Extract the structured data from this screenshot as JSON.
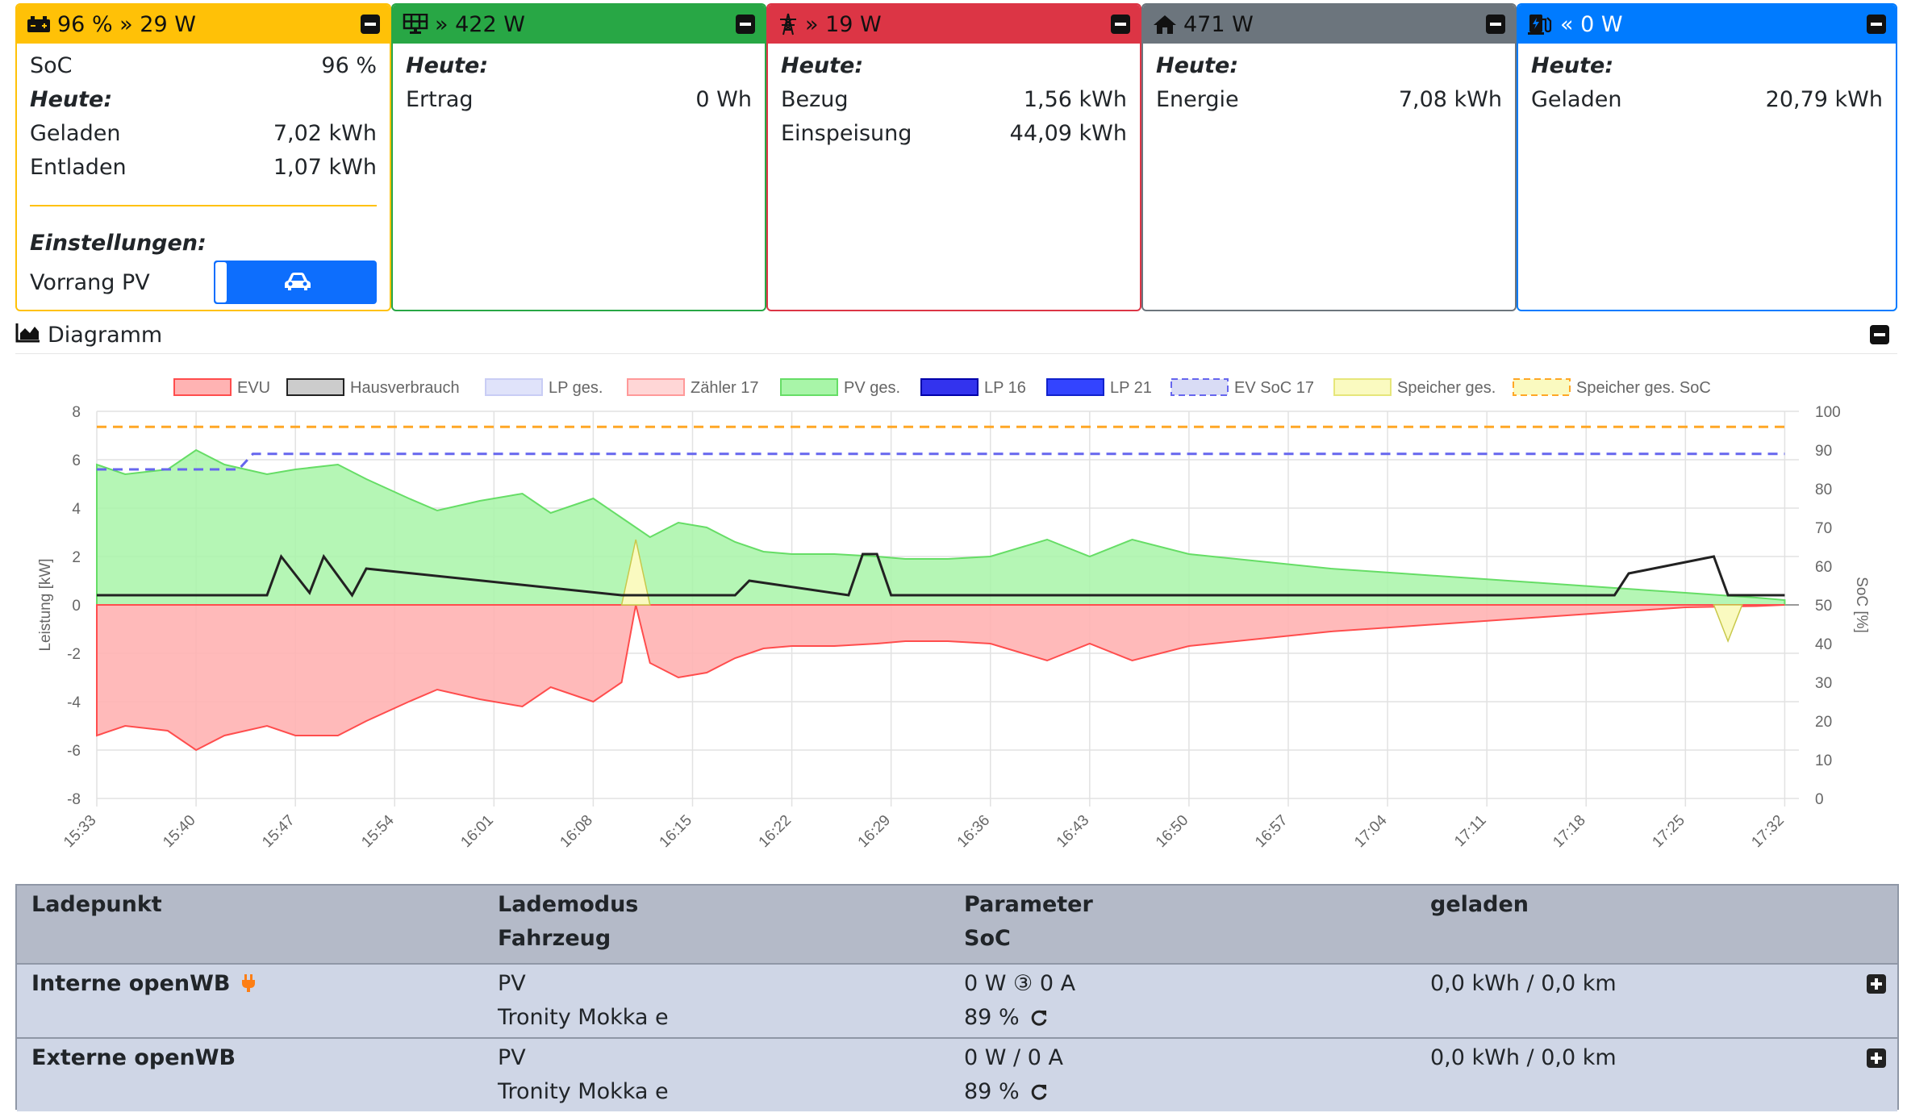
{
  "cards": {
    "battery": {
      "header": "96 % » 29 W",
      "color": "#ffc107",
      "soc_label": "SoC",
      "soc_value": "96 %",
      "today_label": "Heute:",
      "charged_label": "Geladen",
      "charged_value": "7,02 kWh",
      "discharged_label": "Entladen",
      "discharged_value": "1,07 kWh",
      "settings_label": "Einstellungen:",
      "priority_label": "Vorrang PV",
      "priority_toggle_icon": "car-icon"
    },
    "pv": {
      "header": "» 422 W",
      "color": "#28a745",
      "today_label": "Heute:",
      "yield_label": "Ertrag",
      "yield_value": "0 Wh"
    },
    "grid": {
      "header": "» 19 W",
      "color": "#dc3545",
      "today_label": "Heute:",
      "import_label": "Bezug",
      "import_value": "1,56 kWh",
      "export_label": "Einspeisung",
      "export_value": "44,09 kWh"
    },
    "house": {
      "header": "471 W",
      "color": "#6c757d",
      "today_label": "Heute:",
      "energy_label": "Energie",
      "energy_value": "7,08 kWh"
    },
    "charger": {
      "header": "« 0 W",
      "color": "#007bff",
      "today_label": "Heute:",
      "charged_label": "Geladen",
      "charged_value": "20,79 kWh"
    }
  },
  "diagram": {
    "title": "Diagramm"
  },
  "chart_data": {
    "type": "area",
    "x_ticks": [
      "15:33",
      "15:40",
      "15:47",
      "15:54",
      "16:01",
      "16:08",
      "16:15",
      "16:22",
      "16:29",
      "16:36",
      "16:43",
      "16:50",
      "16:57",
      "17:04",
      "17:11",
      "17:18",
      "17:25",
      "17:32"
    ],
    "ylabel_left": "Leistung [kW]",
    "ylabel_right": "SoC [%]",
    "ylim_left": [
      -8,
      8
    ],
    "ylim_right": [
      0,
      100
    ],
    "y_ticks_left": [
      "8",
      "6",
      "4",
      "2",
      "0",
      "-2",
      "-4",
      "-6",
      "-8"
    ],
    "y_ticks_right": [
      "100",
      "90",
      "80",
      "70",
      "60",
      "50",
      "40",
      "30",
      "20",
      "10",
      "0"
    ],
    "grid": true,
    "legend_position": "top",
    "legend": [
      {
        "name": "EVU",
        "fill": "#ffb3b3",
        "stroke": "#ff4d4d",
        "dash": false
      },
      {
        "name": "Hausverbrauch",
        "fill": "#cccccc",
        "stroke": "#222222",
        "dash": false
      },
      {
        "name": "LP ges.",
        "fill": "#e0e3fa",
        "stroke": "#c9cdf5",
        "dash": false
      },
      {
        "name": "Zähler 17",
        "fill": "#ffd6d6",
        "stroke": "#ff9999",
        "dash": false
      },
      {
        "name": "PV ges.",
        "fill": "#a8f5a8",
        "stroke": "#66dd66",
        "dash": false
      },
      {
        "name": "LP 16",
        "fill": "#3333ee",
        "stroke": "#0000aa",
        "dash": false
      },
      {
        "name": "LP 21",
        "fill": "#3344ff",
        "stroke": "#1122cc",
        "dash": false
      },
      {
        "name": "EV SoC 17",
        "fill": "#d9dcf5",
        "stroke": "#6666ee",
        "dash": true
      },
      {
        "name": "Speicher ges.",
        "fill": "#fafac0",
        "stroke": "#e6e67a",
        "dash": false
      },
      {
        "name": "Speicher ges. SoC",
        "fill": "#fafac0",
        "stroke": "#ffa726",
        "dash": true
      }
    ],
    "series": [
      {
        "name": "PV ges.",
        "unit": "kW",
        "x": [
          "15:33",
          "15:35",
          "15:38",
          "15:40",
          "15:42",
          "15:45",
          "15:47",
          "15:50",
          "15:52",
          "15:55",
          "15:57",
          "16:00",
          "16:03",
          "16:05",
          "16:08",
          "16:10",
          "16:12",
          "16:14",
          "16:16",
          "16:18",
          "16:20",
          "16:22",
          "16:25",
          "16:28",
          "16:30",
          "16:33",
          "16:36",
          "16:40",
          "16:43",
          "16:46",
          "16:50",
          "16:55",
          "17:00",
          "17:05",
          "17:10",
          "17:15",
          "17:20",
          "17:25",
          "17:30",
          "17:32"
        ],
        "values": [
          5.8,
          5.4,
          5.6,
          6.4,
          5.8,
          5.4,
          5.6,
          5.8,
          5.2,
          4.4,
          3.9,
          4.3,
          4.6,
          3.8,
          4.4,
          3.6,
          2.8,
          3.4,
          3.2,
          2.6,
          2.2,
          2.1,
          2.1,
          2.0,
          1.9,
          1.9,
          2.0,
          2.7,
          2.0,
          2.7,
          2.1,
          1.8,
          1.5,
          1.3,
          1.1,
          0.9,
          0.7,
          0.5,
          0.3,
          0.2
        ]
      },
      {
        "name": "Hausverbrauch",
        "unit": "kW",
        "x": [
          "15:33",
          "15:45",
          "15:46",
          "15:48",
          "15:49",
          "15:51",
          "15:52",
          "16:10",
          "16:12",
          "16:18",
          "16:19",
          "16:26",
          "16:27",
          "16:28",
          "16:29",
          "17:20",
          "17:21",
          "17:27",
          "17:28",
          "17:32"
        ],
        "values": [
          0.4,
          0.4,
          2.0,
          0.5,
          2.0,
          0.4,
          1.5,
          0.4,
          0.4,
          0.4,
          1.0,
          0.4,
          2.1,
          2.1,
          0.4,
          0.4,
          1.3,
          2.0,
          0.4,
          0.4
        ]
      },
      {
        "name": "EVU",
        "unit": "kW",
        "x": [
          "15:33",
          "15:35",
          "15:38",
          "15:40",
          "15:42",
          "15:45",
          "15:47",
          "15:50",
          "15:52",
          "15:55",
          "15:57",
          "16:00",
          "16:03",
          "16:05",
          "16:08",
          "16:10",
          "16:11",
          "16:12",
          "16:14",
          "16:16",
          "16:18",
          "16:20",
          "16:22",
          "16:25",
          "16:28",
          "16:30",
          "16:33",
          "16:36",
          "16:40",
          "16:43",
          "16:46",
          "16:50",
          "16:55",
          "17:00",
          "17:05",
          "17:10",
          "17:15",
          "17:20",
          "17:25",
          "17:30",
          "17:32"
        ],
        "values": [
          -5.4,
          -5.0,
          -5.2,
          -6.0,
          -5.4,
          -5.0,
          -5.4,
          -5.4,
          -4.8,
          -4.0,
          -3.5,
          -3.9,
          -4.2,
          -3.4,
          -4.0,
          -3.2,
          0.0,
          -2.4,
          -3.0,
          -2.8,
          -2.2,
          -1.8,
          -1.7,
          -1.7,
          -1.6,
          -1.5,
          -1.5,
          -1.6,
          -2.3,
          -1.6,
          -2.3,
          -1.7,
          -1.4,
          -1.1,
          -0.9,
          -0.7,
          -0.5,
          -0.3,
          -0.1,
          -0.05,
          0.0
        ]
      },
      {
        "name": "Speicher ges.",
        "unit": "kW",
        "x": [
          "16:10",
          "16:11",
          "16:12",
          "17:27",
          "17:28",
          "17:29"
        ],
        "values": [
          0,
          2.7,
          0,
          0,
          -1.5,
          0
        ]
      },
      {
        "name": "EV SoC 17",
        "unit": "%",
        "x": [
          "15:33",
          "15:43",
          "15:44",
          "17:32"
        ],
        "values": [
          85,
          85,
          89,
          89
        ]
      },
      {
        "name": "Speicher ges. SoC",
        "unit": "%",
        "x": [
          "15:33",
          "17:32"
        ],
        "values": [
          96,
          96
        ]
      }
    ]
  },
  "table": {
    "headers": {
      "ladepunkt": "Ladepunkt",
      "lademodus": "Lademodus",
      "fahrzeug": "Fahrzeug",
      "parameter": "Parameter",
      "soc": "SoC",
      "geladen": "geladen"
    },
    "rows": [
      {
        "name": "Interne openWB",
        "mode": "PV",
        "vehicle": "Tronity Mokka e",
        "param": "0 W ③ 0 A",
        "soc": "89 %",
        "charged": "0,0 kWh / 0,0 km"
      },
      {
        "name": "Externe openWB",
        "mode": "PV",
        "vehicle": "Tronity Mokka e",
        "param": "0 W / 0 A",
        "soc": "89 %",
        "charged": "0,0 kWh / 0,0 km"
      }
    ]
  }
}
